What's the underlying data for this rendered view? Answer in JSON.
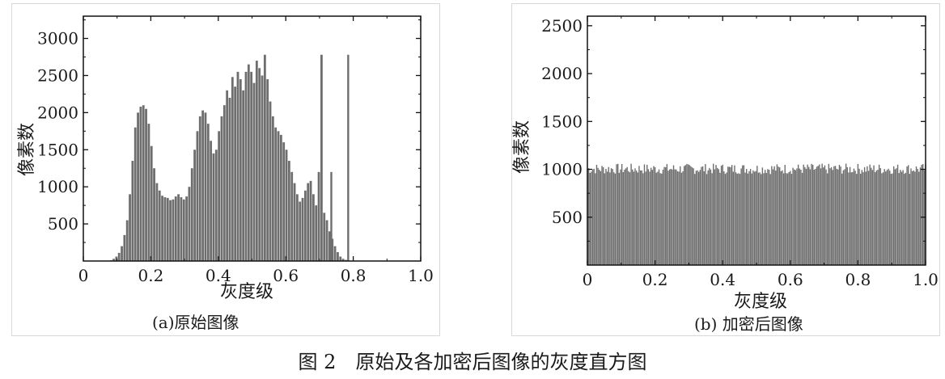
{
  "figure_caption": "图 2　原始及各加密后图像的灰度直方图",
  "chart_data": [
    {
      "type": "bar",
      "caption": "(a)原始图像",
      "xlabel": "灰度级",
      "ylabel": "像素数",
      "xlim": [
        0,
        1.0
      ],
      "ylim": [
        0,
        3300
      ],
      "xticks": [
        "0",
        "0.2",
        "0.4",
        "0.6",
        "0.8",
        "1.0"
      ],
      "yticks": [
        "500",
        "1000",
        "1500",
        "2000",
        "2500",
        "3000"
      ],
      "bar_color": "#6e6e6e",
      "x": [
        0.082,
        0.09,
        0.098,
        0.106,
        0.114,
        0.122,
        0.13,
        0.138,
        0.146,
        0.154,
        0.162,
        0.17,
        0.178,
        0.186,
        0.194,
        0.202,
        0.21,
        0.218,
        0.226,
        0.234,
        0.242,
        0.25,
        0.258,
        0.266,
        0.274,
        0.282,
        0.29,
        0.298,
        0.306,
        0.314,
        0.322,
        0.33,
        0.338,
        0.346,
        0.354,
        0.362,
        0.37,
        0.378,
        0.386,
        0.394,
        0.402,
        0.41,
        0.418,
        0.426,
        0.434,
        0.442,
        0.45,
        0.458,
        0.466,
        0.474,
        0.482,
        0.49,
        0.498,
        0.506,
        0.514,
        0.522,
        0.53,
        0.538,
        0.546,
        0.554,
        0.562,
        0.57,
        0.578,
        0.586,
        0.594,
        0.602,
        0.61,
        0.618,
        0.626,
        0.634,
        0.642,
        0.65,
        0.658,
        0.666,
        0.674,
        0.682,
        0.69,
        0.698,
        0.706,
        0.714,
        0.722,
        0.73,
        0.738,
        0.746,
        0.754,
        0.762,
        0.77,
        0.778,
        0.786,
        0.794,
        0.802,
        0.81,
        0.818,
        0.826,
        0.834,
        0.842,
        0.85,
        0.858,
        0.866,
        0.874,
        0.882,
        0.89,
        0.898
      ],
      "values": [
        10,
        30,
        60,
        110,
        200,
        350,
        550,
        900,
        1350,
        1800,
        2000,
        2080,
        2100,
        2050,
        1850,
        1550,
        1250,
        1050,
        950,
        880,
        860,
        850,
        820,
        830,
        870,
        900,
        860,
        830,
        870,
        1000,
        1250,
        1500,
        1750,
        1950,
        2030,
        2000,
        1850,
        1620,
        1450,
        1500,
        1750,
        1950,
        2100,
        2300,
        2200,
        2480,
        2350,
        2550,
        2450,
        2300,
        2550,
        2650,
        2550,
        2400,
        2700,
        2600,
        2500,
        2780,
        2450,
        2150,
        1950,
        1800,
        1750,
        1700,
        1600,
        1500,
        1350,
        1200,
        1050,
        900,
        800,
        850,
        950,
        1050,
        1080,
        900,
        750,
        1200,
        2780,
        650,
        550,
        400,
        300,
        200,
        120,
        60,
        30,
        15,
        10,
        5,
        3,
        2,
        1,
        1,
        1,
        1,
        1,
        0,
        0,
        0,
        0,
        0,
        0
      ],
      "series_spikes": [
        {
          "x": 0.735,
          "value": 1200
        },
        {
          "x": 0.785,
          "value": 2780
        }
      ]
    },
    {
      "type": "bar",
      "caption": "(b) 加密后图像",
      "xlabel": "灰度级",
      "ylabel": "像素数",
      "xlim": [
        0,
        1.0
      ],
      "ylim": [
        0,
        2600
      ],
      "xticks": [
        "0",
        "0.2",
        "0.4",
        "0.6",
        "0.8",
        "1.0"
      ],
      "yticks": [
        "500",
        "1000",
        "1500",
        "2000",
        "2500"
      ],
      "bar_color": "#6e6e6e",
      "mean_value": 990,
      "value_range": [
        950,
        1060
      ]
    }
  ]
}
